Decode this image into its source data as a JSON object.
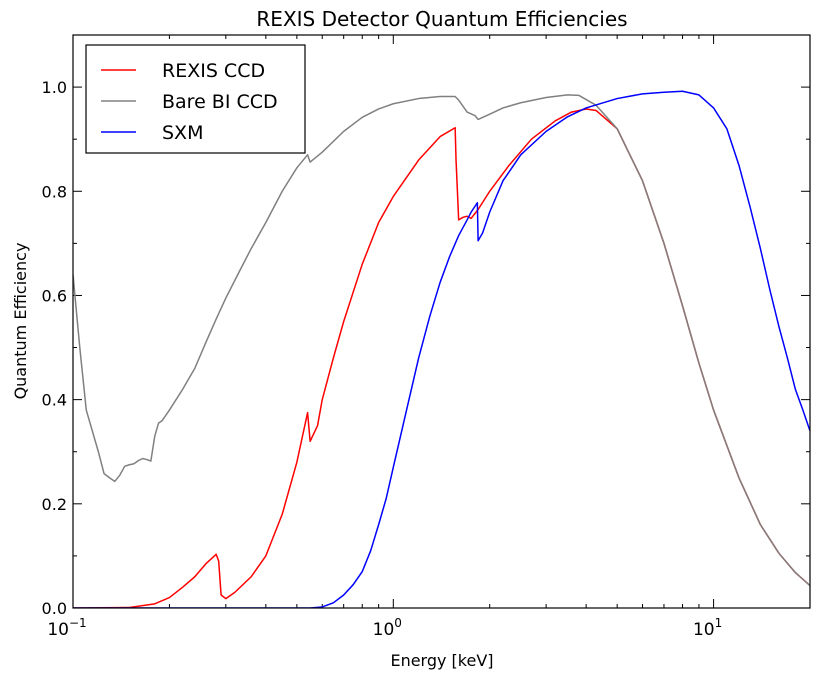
{
  "chart_data": {
    "type": "line",
    "title": "REXIS Detector Quantum Efficiencies",
    "xlabel": "Energy [keV]",
    "ylabel": "Quantum Efficiency",
    "xscale": "log",
    "xlim": [
      0.1,
      20
    ],
    "ylim": [
      0,
      1.1
    ],
    "x_ticks": [
      {
        "value": 0.1,
        "base": "10",
        "exp": "−1"
      },
      {
        "value": 1,
        "base": "10",
        "exp": "0"
      },
      {
        "value": 10,
        "base": "10",
        "exp": "1"
      }
    ],
    "y_ticks": [
      {
        "value": 0.0,
        "label": "0.0"
      },
      {
        "value": 0.2,
        "label": "0.2"
      },
      {
        "value": 0.4,
        "label": "0.4"
      },
      {
        "value": 0.6,
        "label": "0.6"
      },
      {
        "value": 0.8,
        "label": "0.8"
      },
      {
        "value": 1.0,
        "label": "1.0"
      }
    ],
    "grid": false,
    "legend_position": "top-left",
    "series": [
      {
        "name": "REXIS CCD",
        "color": "#ff0000",
        "points": [
          [
            0.1,
            0
          ],
          [
            0.15,
            0.001
          ],
          [
            0.18,
            0.008
          ],
          [
            0.2,
            0.02
          ],
          [
            0.22,
            0.04
          ],
          [
            0.24,
            0.06
          ],
          [
            0.26,
            0.085
          ],
          [
            0.28,
            0.103
          ],
          [
            0.285,
            0.09
          ],
          [
            0.29,
            0.025
          ],
          [
            0.3,
            0.018
          ],
          [
            0.32,
            0.03
          ],
          [
            0.36,
            0.06
          ],
          [
            0.4,
            0.1
          ],
          [
            0.45,
            0.18
          ],
          [
            0.5,
            0.28
          ],
          [
            0.54,
            0.375
          ],
          [
            0.55,
            0.32
          ],
          [
            0.58,
            0.35
          ],
          [
            0.6,
            0.4
          ],
          [
            0.65,
            0.48
          ],
          [
            0.7,
            0.55
          ],
          [
            0.8,
            0.66
          ],
          [
            0.9,
            0.74
          ],
          [
            1.0,
            0.79
          ],
          [
            1.2,
            0.86
          ],
          [
            1.4,
            0.905
          ],
          [
            1.56,
            0.922
          ],
          [
            1.57,
            0.86
          ],
          [
            1.6,
            0.745
          ],
          [
            1.65,
            0.75
          ],
          [
            1.7,
            0.752
          ],
          [
            1.75,
            0.748
          ],
          [
            1.84,
            0.765
          ],
          [
            2.0,
            0.8
          ],
          [
            2.3,
            0.85
          ],
          [
            2.7,
            0.9
          ],
          [
            3.2,
            0.935
          ],
          [
            3.6,
            0.952
          ],
          [
            4.0,
            0.958
          ],
          [
            4.3,
            0.955
          ],
          [
            5.0,
            0.92
          ],
          [
            6.0,
            0.82
          ],
          [
            7.0,
            0.7
          ],
          [
            8.0,
            0.58
          ],
          [
            9.0,
            0.47
          ],
          [
            10.0,
            0.38
          ],
          [
            12.0,
            0.25
          ],
          [
            14.0,
            0.16
          ],
          [
            16.0,
            0.105
          ],
          [
            18.0,
            0.068
          ],
          [
            20.0,
            0.043
          ]
        ]
      },
      {
        "name": "Bare BI CCD",
        "color": "#808080",
        "points": [
          [
            0.1,
            0.64
          ],
          [
            0.105,
            0.5
          ],
          [
            0.11,
            0.38
          ],
          [
            0.12,
            0.3
          ],
          [
            0.125,
            0.258
          ],
          [
            0.13,
            0.25
          ],
          [
            0.135,
            0.243
          ],
          [
            0.14,
            0.255
          ],
          [
            0.145,
            0.272
          ],
          [
            0.15,
            0.275
          ],
          [
            0.155,
            0.277
          ],
          [
            0.16,
            0.283
          ],
          [
            0.165,
            0.287
          ],
          [
            0.17,
            0.285
          ],
          [
            0.175,
            0.282
          ],
          [
            0.18,
            0.33
          ],
          [
            0.185,
            0.355
          ],
          [
            0.19,
            0.36
          ],
          [
            0.2,
            0.38
          ],
          [
            0.22,
            0.42
          ],
          [
            0.24,
            0.46
          ],
          [
            0.26,
            0.51
          ],
          [
            0.28,
            0.555
          ],
          [
            0.3,
            0.595
          ],
          [
            0.33,
            0.645
          ],
          [
            0.36,
            0.69
          ],
          [
            0.4,
            0.74
          ],
          [
            0.45,
            0.8
          ],
          [
            0.5,
            0.845
          ],
          [
            0.54,
            0.87
          ],
          [
            0.55,
            0.856
          ],
          [
            0.6,
            0.875
          ],
          [
            0.7,
            0.915
          ],
          [
            0.8,
            0.942
          ],
          [
            0.9,
            0.958
          ],
          [
            1.0,
            0.968
          ],
          [
            1.2,
            0.978
          ],
          [
            1.4,
            0.982
          ],
          [
            1.56,
            0.982
          ],
          [
            1.6,
            0.975
          ],
          [
            1.7,
            0.952
          ],
          [
            1.8,
            0.945
          ],
          [
            1.84,
            0.938
          ],
          [
            2.0,
            0.948
          ],
          [
            2.2,
            0.96
          ],
          [
            2.5,
            0.97
          ],
          [
            3.0,
            0.98
          ],
          [
            3.5,
            0.985
          ],
          [
            3.8,
            0.984
          ],
          [
            4.3,
            0.965
          ],
          [
            5.0,
            0.92
          ],
          [
            6.0,
            0.82
          ],
          [
            7.0,
            0.7
          ],
          [
            8.0,
            0.58
          ],
          [
            9.0,
            0.47
          ],
          [
            10.0,
            0.38
          ],
          [
            12.0,
            0.25
          ],
          [
            14.0,
            0.16
          ],
          [
            16.0,
            0.105
          ],
          [
            18.0,
            0.068
          ],
          [
            20.0,
            0.043
          ]
        ]
      },
      {
        "name": "SXM",
        "color": "#0000ff",
        "points": [
          [
            0.1,
            0
          ],
          [
            0.55,
            0
          ],
          [
            0.6,
            0.002
          ],
          [
            0.65,
            0.01
          ],
          [
            0.7,
            0.025
          ],
          [
            0.75,
            0.045
          ],
          [
            0.8,
            0.07
          ],
          [
            0.85,
            0.11
          ],
          [
            0.9,
            0.16
          ],
          [
            0.95,
            0.21
          ],
          [
            1.0,
            0.27
          ],
          [
            1.1,
            0.38
          ],
          [
            1.2,
            0.48
          ],
          [
            1.3,
            0.56
          ],
          [
            1.4,
            0.625
          ],
          [
            1.5,
            0.675
          ],
          [
            1.6,
            0.715
          ],
          [
            1.7,
            0.745
          ],
          [
            1.75,
            0.76
          ],
          [
            1.83,
            0.778
          ],
          [
            1.84,
            0.705
          ],
          [
            1.9,
            0.72
          ],
          [
            2.0,
            0.76
          ],
          [
            2.2,
            0.82
          ],
          [
            2.5,
            0.87
          ],
          [
            3.0,
            0.915
          ],
          [
            3.5,
            0.943
          ],
          [
            4.0,
            0.96
          ],
          [
            5.0,
            0.978
          ],
          [
            6.0,
            0.987
          ],
          [
            7.0,
            0.99
          ],
          [
            8.0,
            0.992
          ],
          [
            9.0,
            0.985
          ],
          [
            10.0,
            0.96
          ],
          [
            11.0,
            0.92
          ],
          [
            12.0,
            0.85
          ],
          [
            13.0,
            0.77
          ],
          [
            14.0,
            0.69
          ],
          [
            15.0,
            0.61
          ],
          [
            16.0,
            0.54
          ],
          [
            17.0,
            0.48
          ],
          [
            18.0,
            0.42
          ],
          [
            19.0,
            0.38
          ],
          [
            20.0,
            0.34
          ]
        ]
      }
    ]
  }
}
